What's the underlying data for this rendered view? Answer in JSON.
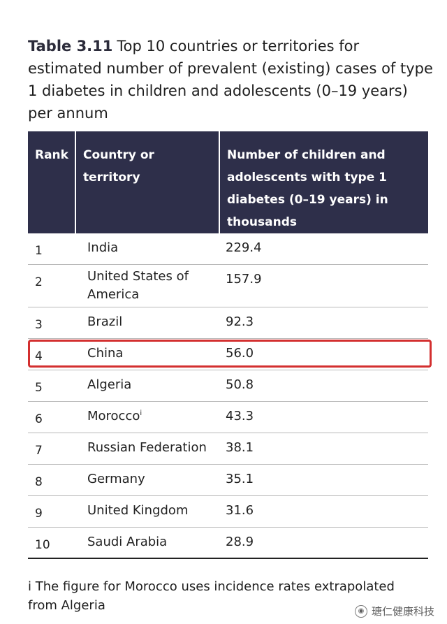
{
  "caption": {
    "label": "Table 3.11",
    "text": "Top 10 countries or territories for estimated number of prevalent (existing) cases of type 1 diabetes in children and adolescents (0–19 years) per annum"
  },
  "table": {
    "headers": {
      "rank": "Rank",
      "country": "Country or territory",
      "number": "Number of children and adolescents with type 1 diabetes (0–19 years) in thousands"
    },
    "rows": [
      {
        "rank": "1",
        "country": "India",
        "note": "",
        "value": "229.4"
      },
      {
        "rank": "2",
        "country": "United States of America",
        "note": "",
        "value": "157.9"
      },
      {
        "rank": "3",
        "country": "Brazil",
        "note": "",
        "value": "92.3"
      },
      {
        "rank": "4",
        "country": "China",
        "note": "",
        "value": "56.0"
      },
      {
        "rank": "5",
        "country": "Algeria",
        "note": "",
        "value": "50.8"
      },
      {
        "rank": "6",
        "country": "Morocco",
        "note": "i",
        "value": "43.3"
      },
      {
        "rank": "7",
        "country": "Russian Federation",
        "note": "",
        "value": "38.1"
      },
      {
        "rank": "8",
        "country": "Germany",
        "note": "",
        "value": "35.1"
      },
      {
        "rank": "9",
        "country": "United Kingdom",
        "note": "",
        "value": "31.6"
      },
      {
        "rank": "10",
        "country": "Saudi Arabia",
        "note": "",
        "value": "28.9"
      }
    ],
    "highlighted_rank": "4",
    "highlight_color": "#d32f2f",
    "header_bg": "#2e2f4a"
  },
  "footnote": "i The figure for Morocco uses incidence rates extrapolated from Algeria",
  "watermark": {
    "icon": "wechat-icon",
    "text": "瑭仁健康科技"
  }
}
